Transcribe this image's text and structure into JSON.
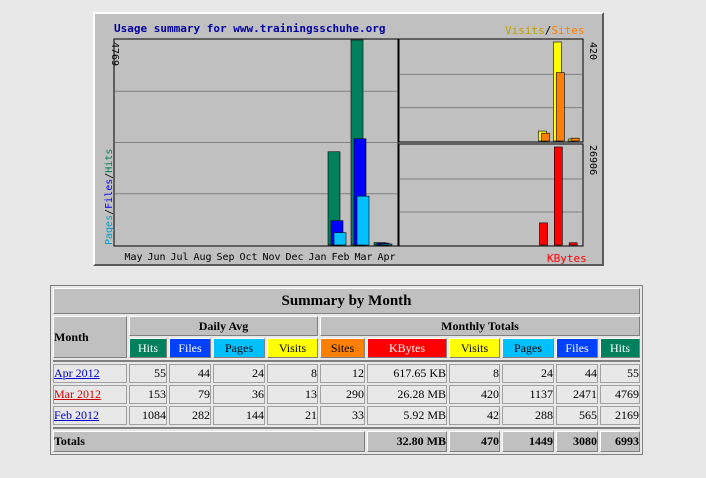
{
  "graph": {
    "title": "Usage summary for www.trainingsschuhe.org",
    "legend_left": {
      "pages": "Pages",
      "files": "Files",
      "hits": "Hits",
      "sep": "/"
    },
    "legend_right_top": {
      "visits": "Visits",
      "sites": "Sites",
      "sep": "/"
    },
    "legend_right_bottom": "KBytes",
    "max_hits_label": "4769",
    "max_visits_label": "420",
    "max_kbytes_label": "26906",
    "colors": {
      "hits": "#00805c",
      "files": "#0000ff",
      "pages": "#00c0ff",
      "visits": "#ffff00",
      "sites": "#ff8000",
      "kbytes": "#ff0000",
      "title": "#0000a0",
      "bg": "#c0c0c0"
    }
  },
  "chart_data": {
    "type": "bar",
    "categories": [
      "May",
      "Jun",
      "Jul",
      "Aug",
      "Sep",
      "Oct",
      "Nov",
      "Dec",
      "Jan",
      "Feb",
      "Mar",
      "Apr"
    ],
    "series": [
      {
        "name": "Hits",
        "values": [
          0,
          0,
          0,
          0,
          0,
          0,
          0,
          0,
          0,
          2169,
          4769,
          55
        ]
      },
      {
        "name": "Files",
        "values": [
          0,
          0,
          0,
          0,
          0,
          0,
          0,
          0,
          0,
          565,
          2471,
          44
        ]
      },
      {
        "name": "Pages",
        "values": [
          0,
          0,
          0,
          0,
          0,
          0,
          0,
          0,
          0,
          288,
          1137,
          24
        ]
      },
      {
        "name": "Visits",
        "values": [
          0,
          0,
          0,
          0,
          0,
          0,
          0,
          0,
          0,
          42,
          420,
          8
        ]
      },
      {
        "name": "Sites",
        "values": [
          0,
          0,
          0,
          0,
          0,
          0,
          0,
          0,
          0,
          33,
          290,
          12
        ]
      },
      {
        "name": "KBytes",
        "values": [
          0,
          0,
          0,
          0,
          0,
          0,
          0,
          0,
          0,
          6062,
          26906,
          618
        ]
      }
    ],
    "ylim_hits": [
      0,
      4769
    ],
    "ylim_visits": [
      0,
      420
    ],
    "ylim_kbytes": [
      0,
      26906
    ],
    "grid": true
  },
  "summary": {
    "title": "Summary by Month",
    "month_header": "Month",
    "daily_avg_header": "Daily Avg",
    "monthly_totals_header": "Monthly Totals",
    "columns": [
      "Hits",
      "Files",
      "Pages",
      "Visits",
      "Sites",
      "KBytes",
      "Visits",
      "Pages",
      "Files",
      "Hits"
    ],
    "rows": [
      {
        "month": "Apr 2012",
        "cells": [
          "55",
          "44",
          "24",
          "8",
          "12",
          "617.65 KB",
          "8",
          "24",
          "44",
          "55"
        ]
      },
      {
        "month": "Mar 2012",
        "cells": [
          "153",
          "79",
          "36",
          "13",
          "290",
          "26.28 MB",
          "420",
          "1137",
          "2471",
          "4769"
        ]
      },
      {
        "month": "Feb 2012",
        "cells": [
          "1084",
          "282",
          "144",
          "21",
          "33",
          "5.92 MB",
          "42",
          "288",
          "565",
          "2169"
        ]
      }
    ],
    "totals": {
      "label": "Totals",
      "kbytes": "32.80 MB",
      "visits": "470",
      "pages": "1449",
      "files": "3080",
      "hits": "6993"
    }
  }
}
